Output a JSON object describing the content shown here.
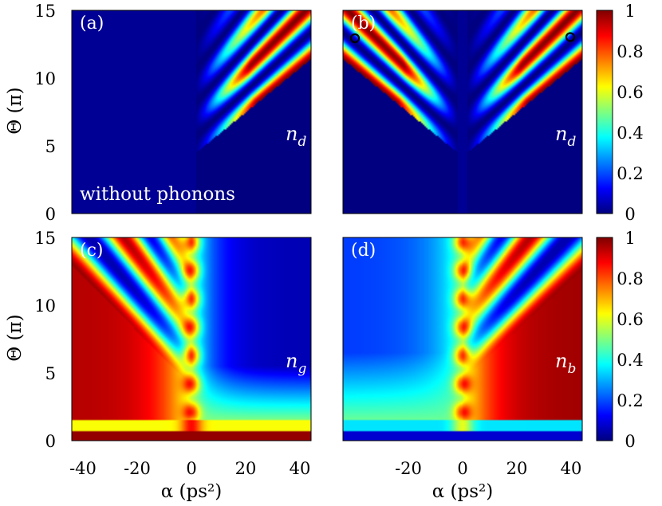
{
  "chart_data": [
    {
      "type": "heatmap",
      "panel_label": "(a)",
      "quantity_label": "n_d",
      "annotation": "without phonons",
      "xlabel": "",
      "ylabel": "Θ (π)",
      "xlim": [
        -45,
        45
      ],
      "ylim": [
        0,
        15
      ],
      "yticks": [
        "0",
        "5",
        "10",
        "15"
      ],
      "values_summary": "n_d is ~0 for α<0; for α>0 bright bands (up to ~1) start near Θ≈5 at α≈5 and fan out towards large α, with the strongest band reaching ~1 around α≈30–45, Θ≈8–14"
    },
    {
      "type": "heatmap",
      "panel_label": "(b)",
      "quantity_label": "n_d",
      "xlabel": "",
      "ylabel": "",
      "xlim": [
        -45,
        45
      ],
      "ylim": [
        0,
        15
      ],
      "markers": [
        {
          "alpha": -40,
          "theta": 12.9
        },
        {
          "alpha": 40,
          "theta": 13.0
        }
      ],
      "values_summary": "n_d symmetric in α: a V-shaped pattern of bright bands (up to ~1) on both sides starting near Θ≈4–5 at α≈0 and opening towards |α|=45"
    },
    {
      "type": "heatmap",
      "panel_label": "(c)",
      "quantity_label": "n_g",
      "xlabel": "α (ps²)",
      "ylabel": "Θ (π)",
      "xlim": [
        -45,
        45
      ],
      "ylim": [
        0,
        15
      ],
      "xticks": [
        "-40",
        "-20",
        "0",
        "20",
        "40"
      ],
      "yticks": [
        "0",
        "5",
        "10",
        "15"
      ],
      "values_summary": "n_g ≈ 1 for Θ<1, ≈0.5 plateau for α>0, large ≈1 region for α<-10 with oscillating bands at high Θ, narrow green stripe near α≈0"
    },
    {
      "type": "heatmap",
      "panel_label": "(d)",
      "quantity_label": "n_b",
      "xlabel": "α (ps²)",
      "ylabel": "",
      "xlim": [
        -45,
        45
      ],
      "ylim": [
        0,
        15
      ],
      "xticks": [
        "-20",
        "0",
        "20",
        "40"
      ],
      "values_summary": "n_b ≈ 0 for Θ<1, ≈0.5 plateau for α<0, large ≈1 region for α>10 with oscillating bands at high Θ, narrow green stripe near α≈0"
    }
  ],
  "colorbar": {
    "range": [
      0,
      1
    ],
    "ticks": [
      "0",
      "0.2",
      "0.4",
      "0.6",
      "0.8",
      "1"
    ],
    "colormap": "jet"
  }
}
